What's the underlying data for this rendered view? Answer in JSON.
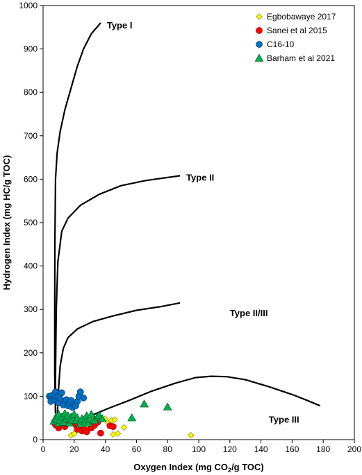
{
  "chart_data": {
    "type": "scatter",
    "xlabel": {
      "pre": "Oxygen Index (mg CO",
      "sub": "2",
      "post": "/g TOC)"
    },
    "ylabel": "Hydrogen Index (mg HC/g TOC)",
    "xlim": [
      0,
      200
    ],
    "ylim": [
      0,
      1000
    ],
    "xticks": [
      0,
      20,
      40,
      60,
      80,
      100,
      120,
      140,
      160,
      180,
      200
    ],
    "yticks": [
      0,
      100,
      200,
      300,
      400,
      500,
      600,
      700,
      800,
      900,
      1000
    ],
    "grid": false,
    "legend_position": "top-right",
    "reference_curves": [
      {
        "label": "Type I",
        "label_at": [
          41,
          955
        ],
        "points": [
          [
            8,
            60
          ],
          [
            7.5,
            150
          ],
          [
            7.5,
            300
          ],
          [
            7.6,
            450
          ],
          [
            8,
            600
          ],
          [
            9,
            660
          ],
          [
            11,
            710
          ],
          [
            14,
            760
          ],
          [
            18,
            810
          ],
          [
            22,
            860
          ],
          [
            26,
            900
          ],
          [
            31,
            935
          ],
          [
            37,
            960
          ]
        ]
      },
      {
        "label": "Type II",
        "label_at": [
          92,
          605
        ],
        "points": [
          [
            8,
            60
          ],
          [
            8,
            150
          ],
          [
            8.5,
            300
          ],
          [
            9.5,
            410
          ],
          [
            12,
            480
          ],
          [
            16,
            510
          ],
          [
            24,
            540
          ],
          [
            36,
            565
          ],
          [
            50,
            585
          ],
          [
            66,
            597
          ],
          [
            88,
            608
          ]
        ]
      },
      {
        "label": "Type II/III",
        "label_at": [
          120,
          292
        ],
        "points": [
          [
            9,
            50
          ],
          [
            10,
            120
          ],
          [
            11,
            170
          ],
          [
            13,
            210
          ],
          [
            16,
            235
          ],
          [
            22,
            255
          ],
          [
            32,
            272
          ],
          [
            45,
            285
          ],
          [
            60,
            298
          ],
          [
            75,
            306
          ],
          [
            88,
            315
          ]
        ]
      },
      {
        "label": "Type III",
        "label_at": [
          145,
          47
        ],
        "points": [
          [
            22,
            40
          ],
          [
            32,
            57
          ],
          [
            42,
            72
          ],
          [
            55,
            90
          ],
          [
            70,
            112
          ],
          [
            85,
            130
          ],
          [
            98,
            143
          ],
          [
            108,
            146
          ],
          [
            118,
            145
          ],
          [
            130,
            138
          ],
          [
            145,
            122
          ],
          [
            160,
            104
          ],
          [
            170,
            90
          ],
          [
            178,
            78
          ]
        ]
      }
    ],
    "series": [
      {
        "name": "Egbobawaye 2017",
        "marker": "diamond",
        "color": "#ffff00",
        "points": [
          [
            18,
            10
          ],
          [
            20,
            14
          ],
          [
            22,
            35
          ],
          [
            24,
            40
          ],
          [
            25,
            46
          ],
          [
            26,
            48
          ],
          [
            27,
            28
          ],
          [
            28,
            45
          ],
          [
            30,
            50
          ],
          [
            32,
            38
          ],
          [
            33,
            48
          ],
          [
            34,
            44
          ],
          [
            35,
            40
          ],
          [
            37,
            45
          ],
          [
            40,
            48
          ],
          [
            42,
            38
          ],
          [
            44,
            44
          ],
          [
            46,
            46
          ],
          [
            45,
            12
          ],
          [
            48,
            14
          ],
          [
            52,
            28
          ],
          [
            95,
            10
          ]
        ]
      },
      {
        "name": "Sanei et al 2015",
        "marker": "circle",
        "color": "#ff0000",
        "points": [
          [
            8,
            34
          ],
          [
            10,
            27
          ],
          [
            11,
            33
          ],
          [
            12,
            36
          ],
          [
            13,
            40
          ],
          [
            14,
            30
          ],
          [
            15,
            36
          ],
          [
            16,
            42
          ],
          [
            18,
            38
          ],
          [
            20,
            44
          ],
          [
            21,
            34
          ],
          [
            22,
            24
          ],
          [
            24,
            30
          ],
          [
            25,
            20
          ],
          [
            27,
            22
          ],
          [
            28,
            18
          ],
          [
            30,
            36
          ],
          [
            31,
            27
          ],
          [
            33,
            33
          ],
          [
            35,
            40
          ],
          [
            37,
            15
          ],
          [
            43,
            32
          ],
          [
            45,
            30
          ]
        ]
      },
      {
        "name": "C16-10",
        "marker": "circle",
        "color": "#0070c0",
        "points": [
          [
            4,
            100
          ],
          [
            5,
            95
          ],
          [
            5,
            88
          ],
          [
            6,
            102
          ],
          [
            7,
            92
          ],
          [
            8,
            97
          ],
          [
            8,
            110
          ],
          [
            9,
            90
          ],
          [
            10,
            85
          ],
          [
            10,
            100
          ],
          [
            11,
            94
          ],
          [
            12,
            108
          ],
          [
            13,
            80
          ],
          [
            14,
            88
          ],
          [
            15,
            92
          ],
          [
            16,
            78
          ],
          [
            17,
            84
          ],
          [
            18,
            90
          ],
          [
            19,
            74
          ],
          [
            20,
            82
          ],
          [
            21,
            78
          ],
          [
            22,
            88
          ],
          [
            23,
            100
          ],
          [
            24,
            110
          ],
          [
            26,
            96
          ]
        ]
      },
      {
        "name": "Barham et al 2021",
        "marker": "triangle",
        "color": "#00b050",
        "points": [
          [
            7,
            42
          ],
          [
            8,
            50
          ],
          [
            9,
            46
          ],
          [
            10,
            38
          ],
          [
            10,
            58
          ],
          [
            11,
            44
          ],
          [
            12,
            52
          ],
          [
            13,
            40
          ],
          [
            14,
            60
          ],
          [
            15,
            48
          ],
          [
            16,
            55
          ],
          [
            17,
            38
          ],
          [
            18,
            52
          ],
          [
            19,
            45
          ],
          [
            20,
            58
          ],
          [
            21,
            44
          ],
          [
            22,
            50
          ],
          [
            24,
            36
          ],
          [
            25,
            48
          ],
          [
            27,
            42
          ],
          [
            28,
            55
          ],
          [
            29,
            38
          ],
          [
            30,
            48
          ],
          [
            31,
            58
          ],
          [
            33,
            44
          ],
          [
            35,
            52
          ],
          [
            36,
            56
          ],
          [
            38,
            48
          ],
          [
            57,
            50
          ],
          [
            65,
            82
          ],
          [
            80,
            75
          ]
        ]
      }
    ]
  }
}
